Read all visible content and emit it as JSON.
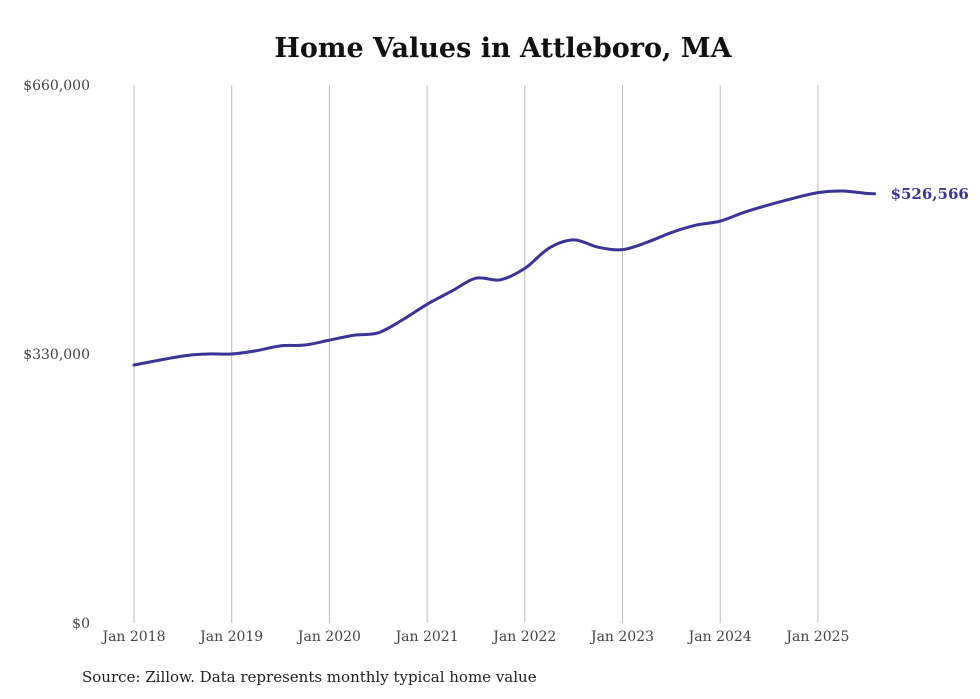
{
  "chart_data": {
    "type": "line",
    "title": "Home Values in Attleboro, MA",
    "xlabel": "",
    "ylabel": "",
    "source": "Source: Zillow. Data represents monthly typical home value",
    "ylim": [
      0,
      660000
    ],
    "y_ticks": [
      {
        "value": 0,
        "label": "$0"
      },
      {
        "value": 330000,
        "label": "$330,000"
      },
      {
        "value": 660000,
        "label": "$660,000"
      }
    ],
    "x_ticks": [
      {
        "value": 2018,
        "label": "Jan 2018"
      },
      {
        "value": 2019,
        "label": "Jan 2019"
      },
      {
        "value": 2020,
        "label": "Jan 2020"
      },
      {
        "value": 2021,
        "label": "Jan 2021"
      },
      {
        "value": 2022,
        "label": "Jan 2022"
      },
      {
        "value": 2023,
        "label": "Jan 2023"
      },
      {
        "value": 2024,
        "label": "Jan 2024"
      },
      {
        "value": 2025,
        "label": "Jan 2025"
      }
    ],
    "grid": "vertical",
    "line_color": "#3b3494",
    "series": [
      {
        "name": "Typical home value",
        "x": [
          2018.0,
          2018.5,
          2018.75,
          2019.0,
          2019.25,
          2019.5,
          2019.75,
          2020.0,
          2020.25,
          2020.5,
          2020.75,
          2021.0,
          2021.25,
          2021.5,
          2021.75,
          2022.0,
          2022.25,
          2022.5,
          2022.75,
          2023.0,
          2023.25,
          2023.5,
          2023.75,
          2024.0,
          2024.25,
          2024.5,
          2024.75,
          2025.0,
          2025.25,
          2025.5,
          2025.58
        ],
        "values": [
          316500,
          327500,
          330000,
          330000,
          334000,
          340000,
          341000,
          347000,
          353000,
          356000,
          372000,
          391000,
          407000,
          423000,
          421000,
          435000,
          460000,
          470000,
          461000,
          458000,
          467000,
          479000,
          488000,
          493000,
          504000,
          513000,
          521000,
          528000,
          530000,
          527000,
          526566
        ]
      }
    ],
    "end_label": "$526,566"
  }
}
